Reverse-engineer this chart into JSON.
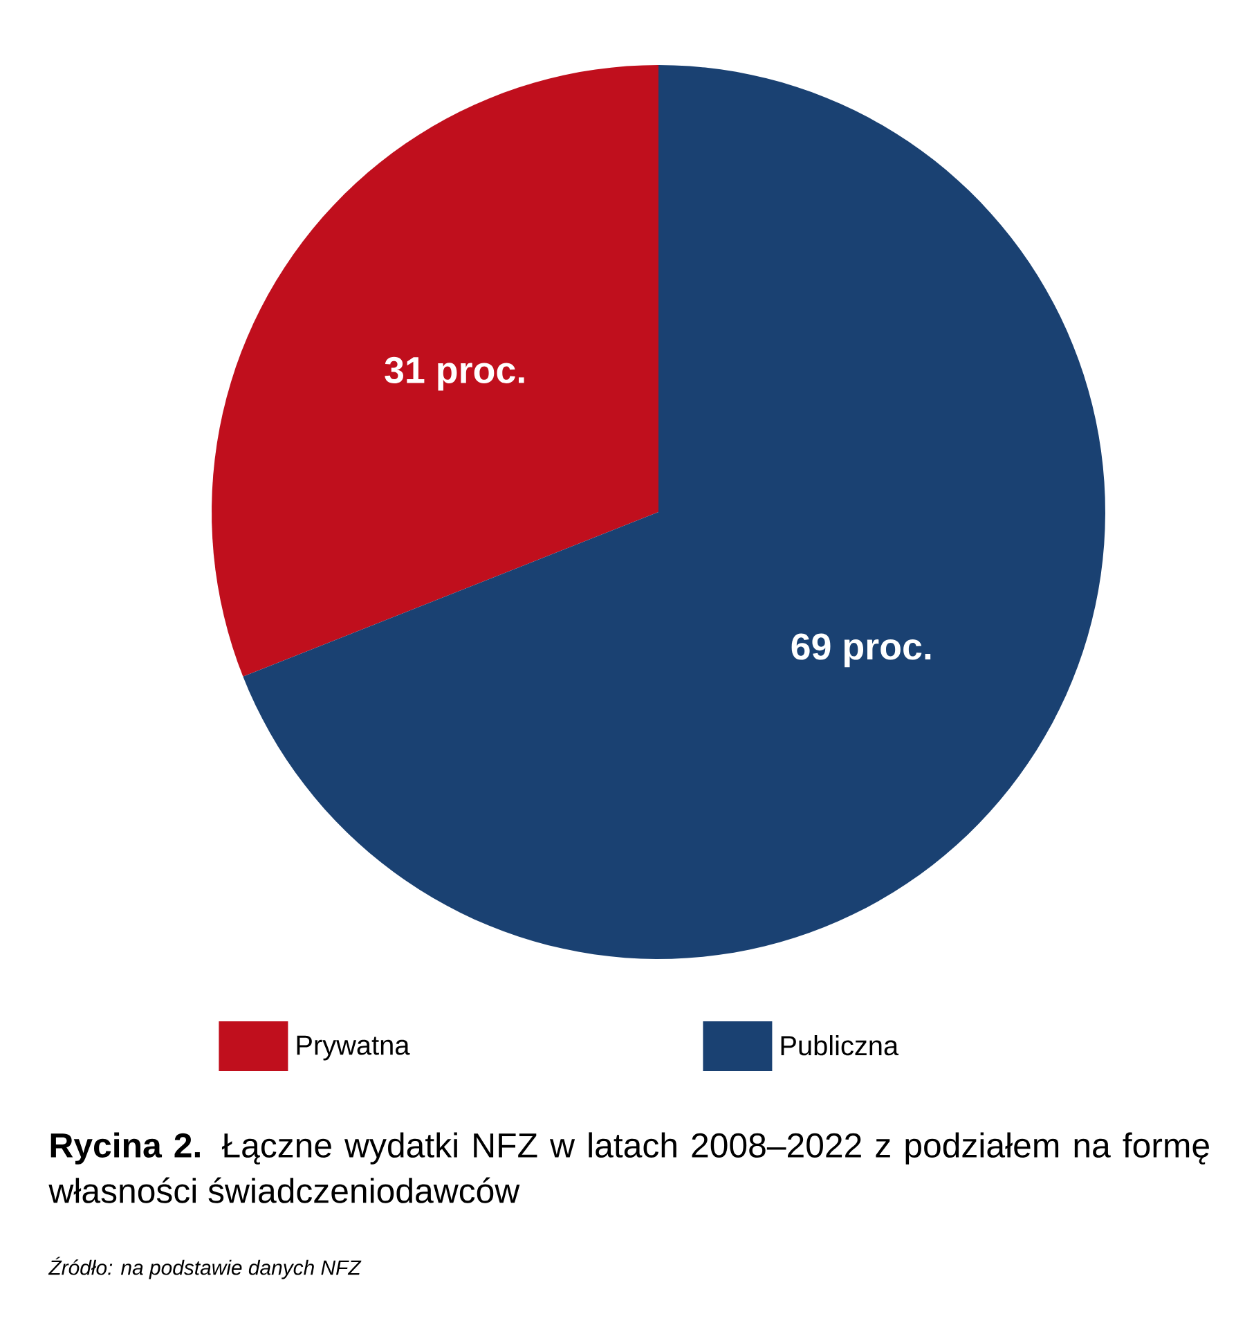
{
  "chart_data": {
    "type": "pie",
    "title": "**Rycina 2.** Łączne wydatki NFZ w latach 2008–2022 z podziałem na formę własności świadczeniodawców",
    "annotations": [
      "Źródło: na podstawie danych NFZ"
    ],
    "categories": [
      "Prywatna",
      "Publiczna"
    ],
    "values": [
      31,
      69
    ],
    "colors": [
      "#c00f1d",
      "#1a4172"
    ],
    "value_labels": [
      "31 proc.",
      "69 proc."
    ],
    "legend": "bottom"
  }
}
